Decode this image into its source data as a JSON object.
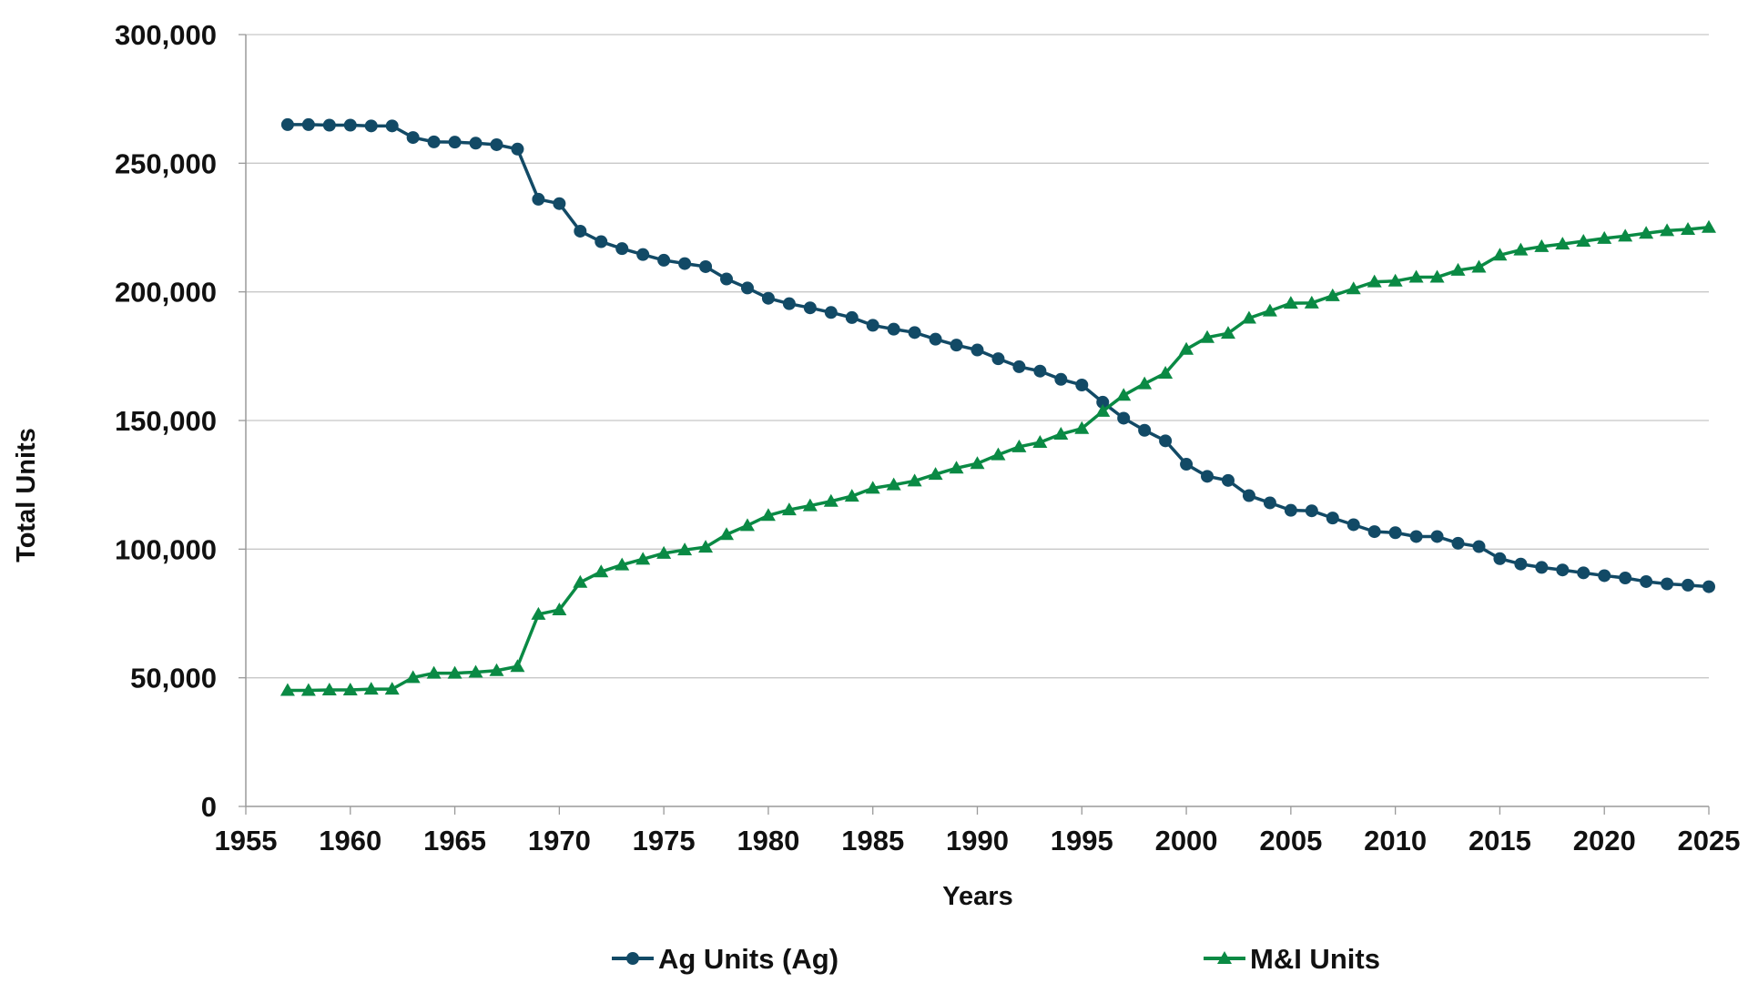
{
  "chart_data": {
    "type": "line",
    "xlabel": "Years",
    "ylabel": "Total Units",
    "xlim": [
      1955,
      2025
    ],
    "ylim": [
      0,
      300000
    ],
    "x_ticks": [
      "1955",
      "1960",
      "1965",
      "1970",
      "1975",
      "1980",
      "1985",
      "1990",
      "1995",
      "2000",
      "2005",
      "2010",
      "2015",
      "2020",
      "2025"
    ],
    "y_ticks": [
      "0",
      "50,000",
      "100,000",
      "150,000",
      "200,000",
      "250,000",
      "300,000"
    ],
    "grid": "horizontal",
    "legend_position": "bottom",
    "x": [
      1957,
      1958,
      1959,
      1960,
      1961,
      1962,
      1963,
      1964,
      1965,
      1966,
      1967,
      1968,
      1969,
      1970,
      1971,
      1972,
      1973,
      1974,
      1975,
      1976,
      1977,
      1978,
      1979,
      1980,
      1981,
      1982,
      1983,
      1984,
      1985,
      1986,
      1987,
      1988,
      1989,
      1990,
      1991,
      1992,
      1993,
      1994,
      1995,
      1996,
      1997,
      1998,
      1999,
      2000,
      2001,
      2002,
      2003,
      2004,
      2005,
      2006,
      2007,
      2008,
      2009,
      2010,
      2011,
      2012,
      2013,
      2014,
      2015,
      2016,
      2017,
      2018,
      2019,
      2020,
      2021,
      2022,
      2023,
      2024,
      2025
    ],
    "series": [
      {
        "name": "Ag Units (Ag)",
        "marker": "circle",
        "color": "#124a66",
        "values": [
          265000,
          265000,
          264800,
          264800,
          264500,
          264500,
          260000,
          258300,
          258200,
          257800,
          257200,
          255500,
          236000,
          234300,
          223600,
          219500,
          216800,
          214500,
          212300,
          211000,
          209800,
          205000,
          201500,
          197500,
          195400,
          193800,
          192000,
          190000,
          187000,
          185500,
          184200,
          181600,
          179300,
          177400,
          174000,
          170900,
          169200,
          166000,
          163800,
          157100,
          150900,
          146200,
          142100,
          133000,
          128300,
          126700,
          120800,
          118000,
          115100,
          114900,
          112100,
          109500,
          106800,
          106400,
          104900,
          104900,
          102300,
          101000,
          96300,
          94200,
          92900,
          91900,
          90800,
          89700,
          88800,
          87400,
          86500,
          86000,
          85400
        ]
      },
      {
        "name": "M&I Units",
        "marker": "triangle",
        "color": "#0a8a44",
        "values": [
          45100,
          45100,
          45300,
          45300,
          45600,
          45600,
          50100,
          51800,
          51800,
          52200,
          52800,
          54400,
          74700,
          76400,
          87100,
          91200,
          93900,
          96100,
          98400,
          99700,
          100800,
          105700,
          109200,
          113100,
          115300,
          116900,
          118600,
          120600,
          123700,
          125000,
          126500,
          129100,
          131500,
          133300,
          136700,
          139800,
          141500,
          144700,
          146900,
          153600,
          159800,
          164300,
          168400,
          177700,
          182300,
          183900,
          189800,
          192600,
          195600,
          195700,
          198500,
          201200,
          203900,
          204200,
          205700,
          205700,
          208400,
          209600,
          214300,
          216300,
          217600,
          218600,
          219700,
          220800,
          221700,
          222800,
          223800,
          224300,
          225100
        ]
      }
    ]
  }
}
